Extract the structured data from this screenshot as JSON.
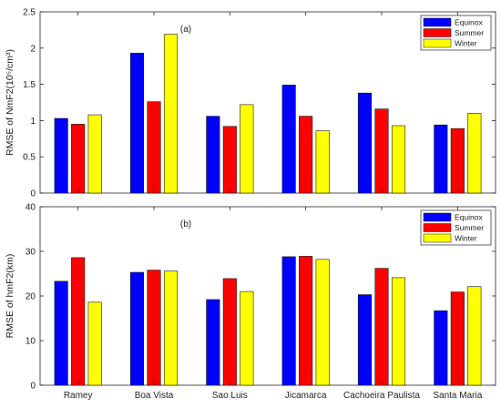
{
  "chart_data": [
    {
      "type": "bar",
      "panel_label": "(a)",
      "categories": [
        "Ramey",
        "Boa Vista",
        "Sao Luis",
        "Jicamarca",
        "Cachoeira Paulista",
        "Santa Maria"
      ],
      "series": [
        {
          "name": "Equinox",
          "color": "#0000ff",
          "values": [
            1.03,
            1.93,
            1.06,
            1.49,
            1.38,
            0.94
          ]
        },
        {
          "name": "Summer",
          "color": "#ff0000",
          "values": [
            0.95,
            1.26,
            0.92,
            1.06,
            1.16,
            0.89
          ]
        },
        {
          "name": "Winter",
          "color": "#ffff00",
          "values": [
            1.08,
            2.19,
            1.22,
            0.86,
            0.93,
            1.1
          ]
        }
      ],
      "ylabel": "RMSE of NmF2(10⁵/cm³)",
      "ylim": [
        0,
        2.5
      ],
      "yticks": [
        "0",
        "0.5",
        "1",
        "1.5",
        "2",
        "2.5"
      ],
      "show_xticklabels": false,
      "grid": false,
      "legend_position": "top-right"
    },
    {
      "type": "bar",
      "panel_label": "(b)",
      "categories": [
        "Ramey",
        "Boa Vista",
        "Sao Luis",
        "Jicamarca",
        "Cachoeira Paulista",
        "Santa Maria"
      ],
      "series": [
        {
          "name": "Equinox",
          "color": "#0000ff",
          "values": [
            23.3,
            25.3,
            19.2,
            28.8,
            20.3,
            16.7
          ]
        },
        {
          "name": "Summer",
          "color": "#ff0000",
          "values": [
            28.6,
            25.8,
            23.9,
            28.9,
            26.2,
            20.9
          ]
        },
        {
          "name": "Winter",
          "color": "#ffff00",
          "values": [
            18.6,
            25.6,
            21.0,
            28.2,
            24.1,
            22.1
          ]
        }
      ],
      "ylabel": "RMSE of hmF2(km)",
      "ylim": [
        0,
        40
      ],
      "yticks": [
        "0",
        "10",
        "20",
        "30",
        "40"
      ],
      "show_xticklabels": true,
      "grid": false,
      "legend_position": "top-right"
    }
  ]
}
